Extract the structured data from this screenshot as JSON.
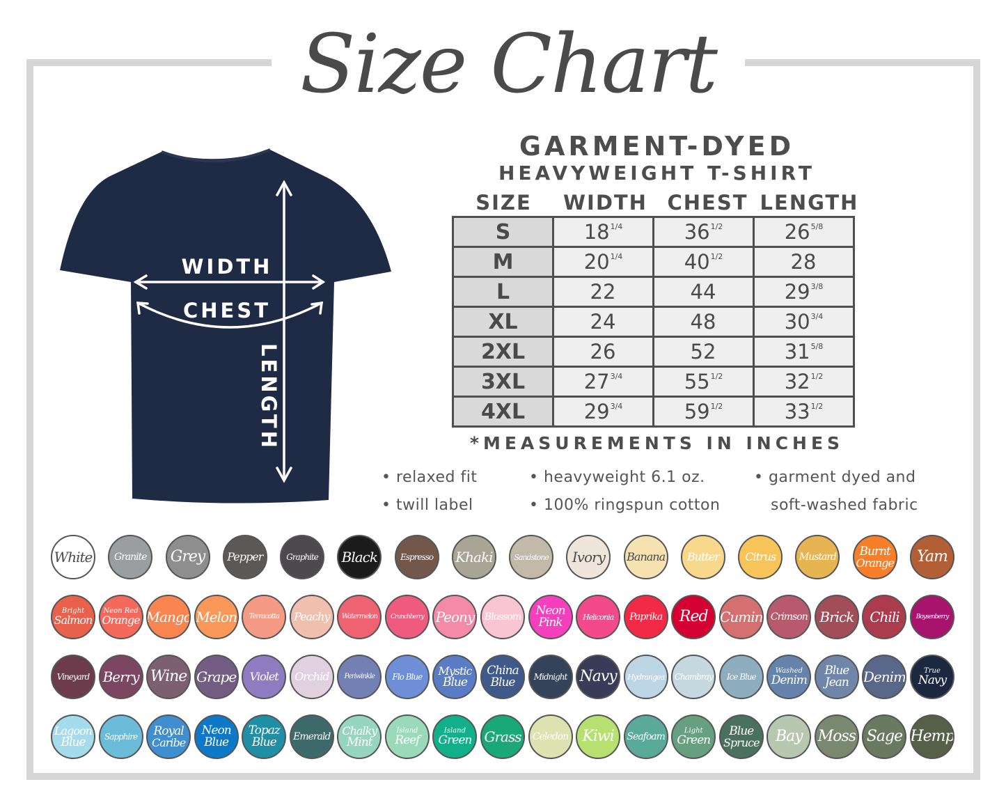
{
  "title": "Size Chart",
  "product": {
    "line1": "GARMENT-DYED",
    "line2": "HEAVYWEIGHT T-SHIRT"
  },
  "shirt": {
    "color": "#1f2a44",
    "labels": {
      "width": "WIDTH",
      "chest": "CHEST",
      "length": "LENGTH"
    }
  },
  "table": {
    "headers": [
      "SIZE",
      "WIDTH",
      "CHEST",
      "LENGTH"
    ],
    "rows": [
      {
        "size": "S",
        "width": {
          "v": "18",
          "f": "1/4"
        },
        "chest": {
          "v": "36",
          "f": "1/2"
        },
        "length": {
          "v": "26",
          "f": "5/8"
        }
      },
      {
        "size": "M",
        "width": {
          "v": "20",
          "f": "1/4"
        },
        "chest": {
          "v": "40",
          "f": "1/2"
        },
        "length": {
          "v": "28",
          "f": ""
        }
      },
      {
        "size": "L",
        "width": {
          "v": "22",
          "f": ""
        },
        "chest": {
          "v": "44",
          "f": ""
        },
        "length": {
          "v": "29",
          "f": "3/8"
        }
      },
      {
        "size": "XL",
        "width": {
          "v": "24",
          "f": ""
        },
        "chest": {
          "v": "48",
          "f": ""
        },
        "length": {
          "v": "30",
          "f": "3/4"
        }
      },
      {
        "size": "2XL",
        "width": {
          "v": "26",
          "f": ""
        },
        "chest": {
          "v": "52",
          "f": ""
        },
        "length": {
          "v": "31",
          "f": "5/8"
        }
      },
      {
        "size": "3XL",
        "width": {
          "v": "27",
          "f": "3/4"
        },
        "chest": {
          "v": "55",
          "f": "1/2"
        },
        "length": {
          "v": "32",
          "f": "1/2"
        }
      },
      {
        "size": "4XL",
        "width": {
          "v": "29",
          "f": "3/4"
        },
        "chest": {
          "v": "59",
          "f": "1/2"
        },
        "length": {
          "v": "33",
          "f": "1/2"
        }
      }
    ],
    "note": "*MEASUREMENTS IN INCHES"
  },
  "features": {
    "relaxed": "• relaxed fit",
    "twill": "• twill label",
    "weight": "• heavyweight 6.1 oz.",
    "cotton": "• 100% ringspun cotton",
    "dyed1": "• garment dyed and",
    "dyed2": "soft-washed fabric"
  },
  "swatch_rows": [
    [
      {
        "lines": [
          "White"
        ],
        "color": "#ffffff",
        "text": "#4a4a4a"
      },
      {
        "lines": [
          "Granite"
        ],
        "color": "#9a9ea0",
        "text": "#ffffff"
      },
      {
        "lines": [
          "Grey"
        ],
        "color": "#8e8e8e",
        "text": "#ffffff"
      },
      {
        "lines": [
          "Pepper"
        ],
        "color": "#5b5958",
        "text": "#ffffff"
      },
      {
        "lines": [
          "Graphite"
        ],
        "color": "#4d4a4e",
        "text": "#ffffff"
      },
      {
        "lines": [
          "Black"
        ],
        "color": "#1c1c1c",
        "text": "#ffffff"
      },
      {
        "lines": [
          "Espresso"
        ],
        "color": "#72584a",
        "text": "#ffffff"
      },
      {
        "lines": [
          "Khaki"
        ],
        "color": "#a9a594",
        "text": "#ffffff"
      },
      {
        "lines": [
          "Sandstone"
        ],
        "color": "#c3b9a8",
        "text": "#ffffff"
      },
      {
        "lines": [
          "Ivory"
        ],
        "color": "#eee6da",
        "text": "#4a4a4a"
      },
      {
        "lines": [
          "Banana"
        ],
        "color": "#f5e2b0",
        "text": "#4a4a4a"
      },
      {
        "lines": [
          "Butter"
        ],
        "color": "#f8d88a",
        "text": "#ffffff"
      },
      {
        "lines": [
          "Citrus"
        ],
        "color": "#f7c45a",
        "text": "#ffffff"
      },
      {
        "lines": [
          "Mustard"
        ],
        "color": "#e6b552",
        "text": "#ffffff"
      },
      {
        "lines": [
          "Burnt",
          "Orange"
        ],
        "color": "#f77f2a",
        "text": "#ffffff"
      },
      {
        "lines": [
          "Yam"
        ],
        "color": "#b25f36",
        "text": "#ffffff"
      }
    ],
    [
      {
        "lines": [
          "Bright",
          "Salmon"
        ],
        "color": "#e8614a",
        "text": "#ffffff"
      },
      {
        "lines": [
          "Neon Red",
          "Orange"
        ],
        "color": "#f36a5c",
        "text": "#ffffff"
      },
      {
        "lines": [
          "Mango"
        ],
        "color": "#fb8550",
        "text": "#ffffff"
      },
      {
        "lines": [
          "Melon"
        ],
        "color": "#f99858",
        "text": "#ffffff"
      },
      {
        "lines": [
          "Terracotta"
        ],
        "color": "#f59b85",
        "text": "#ffffff"
      },
      {
        "lines": [
          "Peachy"
        ],
        "color": "#f0bfae",
        "text": "#ffffff"
      },
      {
        "lines": [
          "Watermelon"
        ],
        "color": "#ef6272",
        "text": "#ffffff"
      },
      {
        "lines": [
          "Crunchberry"
        ],
        "color": "#ee5b7e",
        "text": "#ffffff"
      },
      {
        "lines": [
          "Peony"
        ],
        "color": "#f58aa8",
        "text": "#ffffff"
      },
      {
        "lines": [
          "Blossom"
        ],
        "color": "#f9c5d3",
        "text": "#ffffff"
      },
      {
        "lines": [
          "Neon",
          "Pink"
        ],
        "color": "#f53fbd",
        "text": "#ffffff"
      },
      {
        "lines": [
          "Heliconia"
        ],
        "color": "#f34a8b",
        "text": "#ffffff"
      },
      {
        "lines": [
          "Paprika"
        ],
        "color": "#f22a45",
        "text": "#ffffff"
      },
      {
        "lines": [
          "Red"
        ],
        "color": "#d40031",
        "text": "#ffffff"
      },
      {
        "lines": [
          "Cumin"
        ],
        "color": "#d57070",
        "text": "#ffffff"
      },
      {
        "lines": [
          "Crimson"
        ],
        "color": "#b85a6e",
        "text": "#ffffff"
      },
      {
        "lines": [
          "Brick"
        ],
        "color": "#a24d5a",
        "text": "#ffffff"
      },
      {
        "lines": [
          "Chili"
        ],
        "color": "#ac3b4e",
        "text": "#ffffff"
      },
      {
        "lines": [
          "Boysenberry"
        ],
        "color": "#a8136e",
        "text": "#ffffff"
      }
    ],
    [
      {
        "lines": [
          "Vineyard"
        ],
        "color": "#6d3c4c",
        "text": "#ffffff"
      },
      {
        "lines": [
          "Berry"
        ],
        "color": "#7c4562",
        "text": "#ffffff"
      },
      {
        "lines": [
          "Wine"
        ],
        "color": "#7d6070",
        "text": "#ffffff"
      },
      {
        "lines": [
          "Grape"
        ],
        "color": "#735d82",
        "text": "#ffffff"
      },
      {
        "lines": [
          "Violet"
        ],
        "color": "#8d7cbf",
        "text": "#ffffff"
      },
      {
        "lines": [
          "Orchid"
        ],
        "color": "#e0d0e0",
        "text": "#ffffff"
      },
      {
        "lines": [
          "Periwinkle"
        ],
        "color": "#7280b4",
        "text": "#ffffff"
      },
      {
        "lines": [
          "Flo Blue"
        ],
        "color": "#6f8ed8",
        "text": "#ffffff"
      },
      {
        "lines": [
          "Mystic",
          "Blue"
        ],
        "color": "#5a7cc5",
        "text": "#ffffff"
      },
      {
        "lines": [
          "China",
          "Blue"
        ],
        "color": "#3f5a8a",
        "text": "#ffffff"
      },
      {
        "lines": [
          "Midnight"
        ],
        "color": "#34425a",
        "text": "#ffffff"
      },
      {
        "lines": [
          "Navy"
        ],
        "color": "#3a3b58",
        "text": "#ffffff"
      },
      {
        "lines": [
          "Hydrangea"
        ],
        "color": "#bcd6e6",
        "text": "#ffffff"
      },
      {
        "lines": [
          "Chambray"
        ],
        "color": "#c5d8e0",
        "text": "#ffffff"
      },
      {
        "lines": [
          "Ice Blue"
        ],
        "color": "#8eaec0",
        "text": "#ffffff"
      },
      {
        "lines": [
          "Washed",
          "Denim"
        ],
        "color": "#6684ab",
        "text": "#ffffff"
      },
      {
        "lines": [
          "Blue",
          "Jean"
        ],
        "color": "#6f86a8",
        "text": "#ffffff"
      },
      {
        "lines": [
          "Denim"
        ],
        "color": "#58678a",
        "text": "#ffffff"
      },
      {
        "lines": [
          "True",
          "Navy"
        ],
        "color": "#1c2840",
        "text": "#ffffff"
      }
    ],
    [
      {
        "lines": [
          "Lagoon",
          "Blue"
        ],
        "color": "#a4dcec",
        "text": "#ffffff"
      },
      {
        "lines": [
          "Sapphire"
        ],
        "color": "#6bbcd8",
        "text": "#ffffff"
      },
      {
        "lines": [
          "Royal",
          "Caribe"
        ],
        "color": "#3f8ed0",
        "text": "#ffffff"
      },
      {
        "lines": [
          "Neon",
          "Blue"
        ],
        "color": "#0c78c8",
        "text": "#ffffff"
      },
      {
        "lines": [
          "Topaz",
          "Blue"
        ],
        "color": "#1f8fa5",
        "text": "#ffffff"
      },
      {
        "lines": [
          "Emerald"
        ],
        "color": "#3d6b6a",
        "text": "#ffffff"
      },
      {
        "lines": [
          "Chalky",
          "Mint"
        ],
        "color": "#96d6c0",
        "text": "#ffffff"
      },
      {
        "lines": [
          "Island",
          "Reef"
        ],
        "color": "#9adab8",
        "text": "#ffffff"
      },
      {
        "lines": [
          "Island",
          "Green"
        ],
        "color": "#12b088",
        "text": "#ffffff"
      },
      {
        "lines": [
          "Grass"
        ],
        "color": "#1aa878",
        "text": "#ffffff"
      },
      {
        "lines": [
          "Celedon"
        ],
        "color": "#dce2b0",
        "text": "#ffffff"
      },
      {
        "lines": [
          "Kiwi"
        ],
        "color": "#b6e070",
        "text": "#ffffff"
      },
      {
        "lines": [
          "Seafoam"
        ],
        "color": "#5aaa9a",
        "text": "#ffffff"
      },
      {
        "lines": [
          "Light",
          "Green"
        ],
        "color": "#66a080",
        "text": "#ffffff"
      },
      {
        "lines": [
          "Blue",
          "Spruce"
        ],
        "color": "#4a7060",
        "text": "#ffffff"
      },
      {
        "lines": [
          "Bay"
        ],
        "color": "#b8c8b0",
        "text": "#ffffff"
      },
      {
        "lines": [
          "Moss"
        ],
        "color": "#7a8870",
        "text": "#ffffff"
      },
      {
        "lines": [
          "Sage"
        ],
        "color": "#6a7a60",
        "text": "#ffffff"
      },
      {
        "lines": [
          "Hemp"
        ],
        "color": "#566048",
        "text": "#ffffff"
      }
    ]
  ]
}
